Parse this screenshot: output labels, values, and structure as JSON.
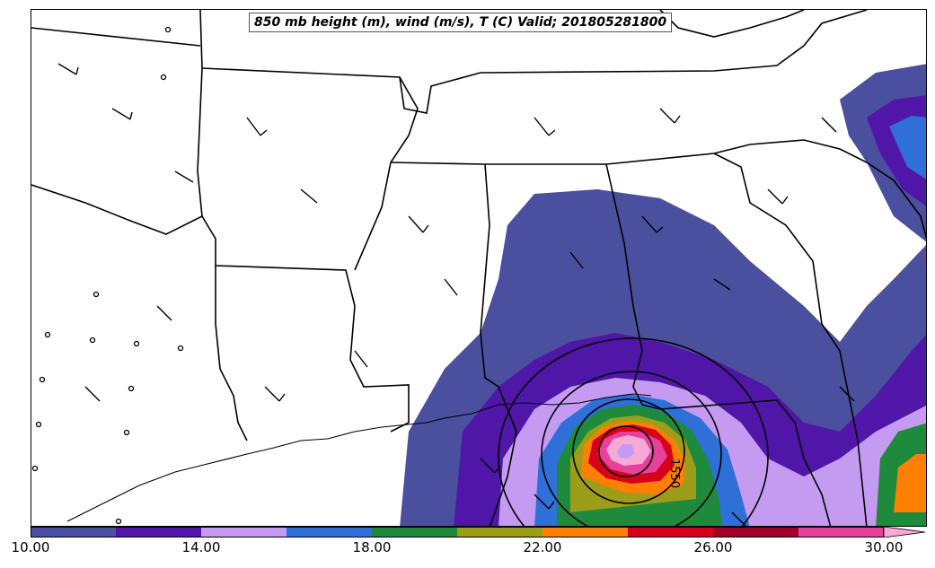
{
  "title": "850 mb height (m), wind (m/s), T (C) Valid; 201805281800",
  "contour_label": "1550",
  "colorbar": {
    "ticks": [
      "10.00",
      "14.00",
      "18.00",
      "22.00",
      "26.00",
      "30.00"
    ],
    "bins": [
      {
        "from": 10,
        "to": 12,
        "color": "#4a4f9e"
      },
      {
        "from": 12,
        "to": 14,
        "color": "#5016a8"
      },
      {
        "from": 14,
        "to": 16,
        "color": "#c59bf2"
      },
      {
        "from": 16,
        "to": 18,
        "color": "#2e6fd8"
      },
      {
        "from": 18,
        "to": 20,
        "color": "#1f8a3c"
      },
      {
        "from": 20,
        "to": 22,
        "color": "#9c9e1a"
      },
      {
        "from": 22,
        "to": 24,
        "color": "#ff7f00"
      },
      {
        "from": 24,
        "to": 26,
        "color": "#d7001c"
      },
      {
        "from": 26,
        "to": 28,
        "color": "#a0002a"
      },
      {
        "from": 28,
        "to": 30,
        "color": "#e6419b"
      }
    ],
    "extend_color": "#f7a9d6",
    "min": 10,
    "max": 30
  },
  "colors": {
    "state_lines": "#000000",
    "background": "#ffffff"
  }
}
